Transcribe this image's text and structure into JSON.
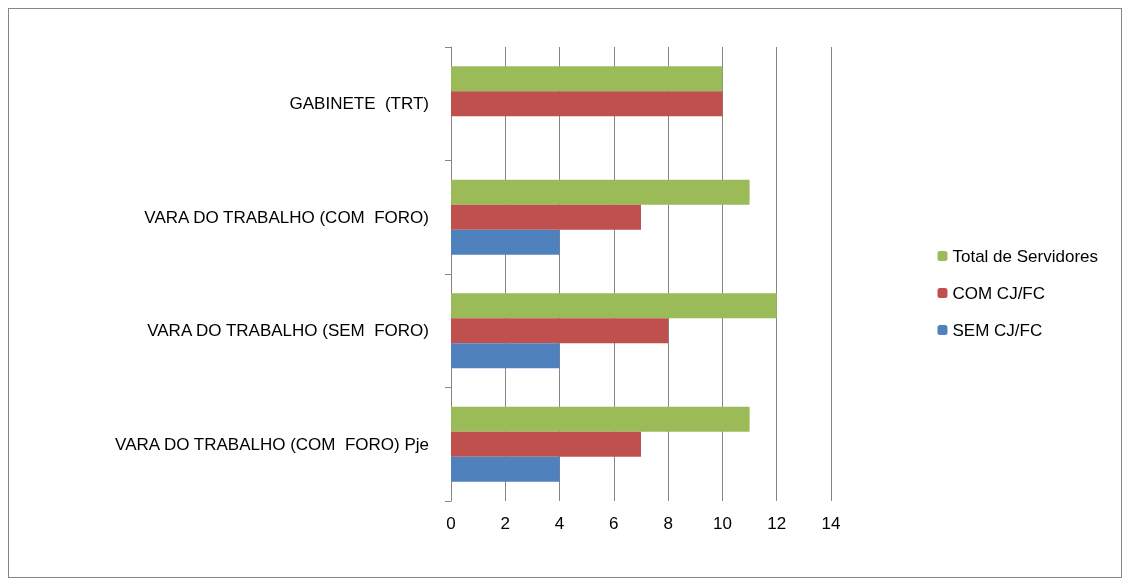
{
  "chart_data": {
    "type": "bar",
    "orientation": "horizontal",
    "categories": [
      "GABINETE  (TRT)",
      "VARA DO TRABALHO (COM  FORO)",
      "VARA DO TRABALHO (SEM  FORO)",
      "VARA DO TRABALHO (COM  FORO) Pje"
    ],
    "series": [
      {
        "name": "Total de Servidores",
        "color": "#9bbb59",
        "values": [
          10,
          11,
          12,
          11
        ]
      },
      {
        "name": "COM CJ/FC",
        "color": "#c0504d",
        "values": [
          10,
          7,
          8,
          7
        ]
      },
      {
        "name": "SEM CJ/FC",
        "color": "#4f81bd",
        "values": [
          0,
          4,
          4,
          4
        ]
      }
    ],
    "xlim": [
      0,
      14
    ],
    "xticks": [
      0,
      2,
      4,
      6,
      8,
      10,
      12,
      14
    ],
    "grid": "x",
    "legend": "right"
  }
}
